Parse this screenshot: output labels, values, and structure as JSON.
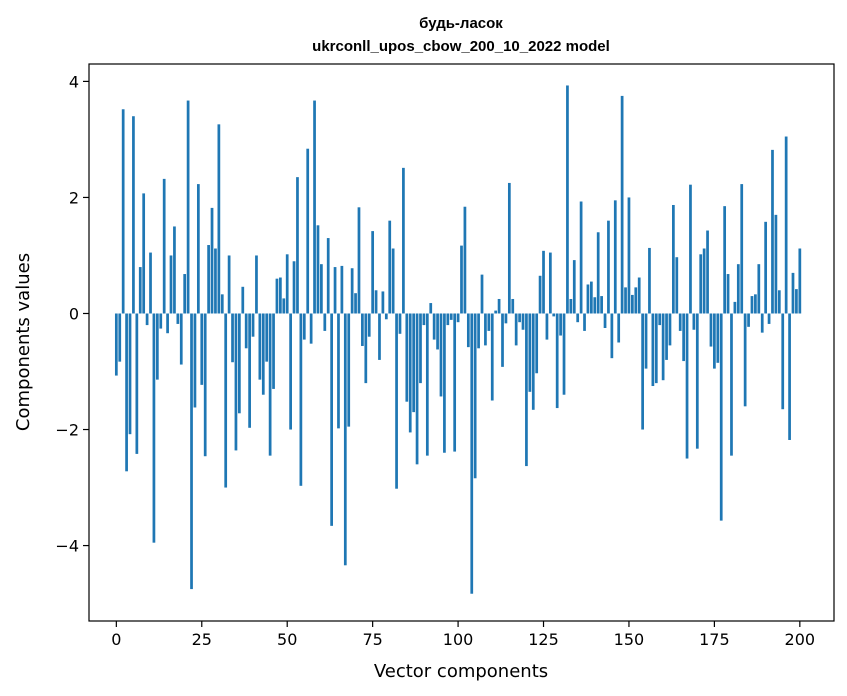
{
  "chart_data": {
    "type": "bar",
    "title": "будь-ласок",
    "subtitle": "ukrconll_upos_cbow_200_10_2022 model",
    "xlabel": "Vector components",
    "ylabel": "Components values",
    "xlim": [
      -8,
      210
    ],
    "ylim": [
      -5.3,
      4.3
    ],
    "xticks": [
      0,
      25,
      50,
      75,
      100,
      125,
      150,
      175,
      200
    ],
    "yticks": [
      -4,
      -2,
      0,
      2,
      4
    ],
    "ytick_labels": [
      "−4",
      "−2",
      "0",
      "2",
      "4"
    ],
    "grid": false,
    "bar_color": "#1f77b4",
    "values": [
      -1.07,
      -0.83,
      3.52,
      -2.72,
      -2.08,
      3.4,
      -2.42,
      0.8,
      2.07,
      -0.2,
      1.05,
      -3.95,
      -1.14,
      -0.26,
      2.32,
      -0.34,
      1.0,
      1.5,
      -0.18,
      -0.88,
      0.68,
      3.67,
      -4.75,
      -1.62,
      2.23,
      -1.23,
      -2.46,
      1.18,
      1.82,
      1.12,
      3.26,
      0.33,
      -3.0,
      1.0,
      -0.84,
      -2.36,
      -1.72,
      0.46,
      -0.6,
      -1.97,
      -0.4,
      1.0,
      -1.14,
      -1.4,
      -0.83,
      -2.45,
      -1.3,
      0.6,
      0.62,
      0.26,
      1.02,
      -2.0,
      0.9,
      2.35,
      -2.97,
      -0.45,
      2.84,
      -0.52,
      3.67,
      1.52,
      0.85,
      -0.3,
      1.3,
      -3.66,
      0.8,
      -1.98,
      0.82,
      -4.34,
      -1.95,
      0.78,
      0.35,
      1.83,
      -0.56,
      -1.2,
      -0.4,
      1.42,
      0.4,
      -0.8,
      0.38,
      -0.1,
      1.6,
      1.12,
      -3.02,
      -0.35,
      2.51,
      -1.52,
      -2.05,
      -1.7,
      -2.6,
      -1.2,
      -0.2,
      -2.45,
      0.18,
      -0.45,
      -0.62,
      -1.43,
      -2.4,
      -0.2,
      -0.11,
      -2.38,
      -0.15,
      1.17,
      1.84,
      -0.58,
      -4.83,
      -2.84,
      -0.6,
      0.67,
      -0.55,
      -0.3,
      -1.5,
      0.05,
      0.25,
      -0.92,
      -0.17,
      2.25,
      0.25,
      -0.55,
      -0.15,
      -0.28,
      -2.63,
      -1.35,
      -1.66,
      -1.03,
      0.65,
      1.08,
      -0.45,
      1.05,
      -0.05,
      -1.63,
      -0.38,
      -1.4,
      3.93,
      0.25,
      0.92,
      -0.15,
      1.93,
      -0.3,
      0.5,
      0.55,
      0.28,
      1.4,
      0.3,
      -0.25,
      1.6,
      -0.77,
      1.95,
      -0.5,
      3.75,
      0.45,
      2.0,
      0.32,
      0.45,
      0.62,
      -2.0,
      -0.95,
      1.13,
      -1.25,
      -1.2,
      -0.2,
      -1.15,
      -0.8,
      -0.55,
      1.87,
      0.97,
      -0.3,
      -0.82,
      -2.5,
      2.22,
      -0.28,
      -2.33,
      1.02,
      1.12,
      1.43,
      -0.57,
      -0.95,
      -0.85,
      -3.57,
      1.85,
      0.68,
      -2.45,
      0.2,
      0.85,
      2.23,
      -1.6,
      -0.23,
      0.3,
      0.33,
      0.85,
      -0.33,
      1.58,
      -0.18,
      2.82,
      1.7,
      0.4,
      -1.65,
      3.05,
      -2.18,
      0.7,
      0.42,
      1.12
    ]
  }
}
